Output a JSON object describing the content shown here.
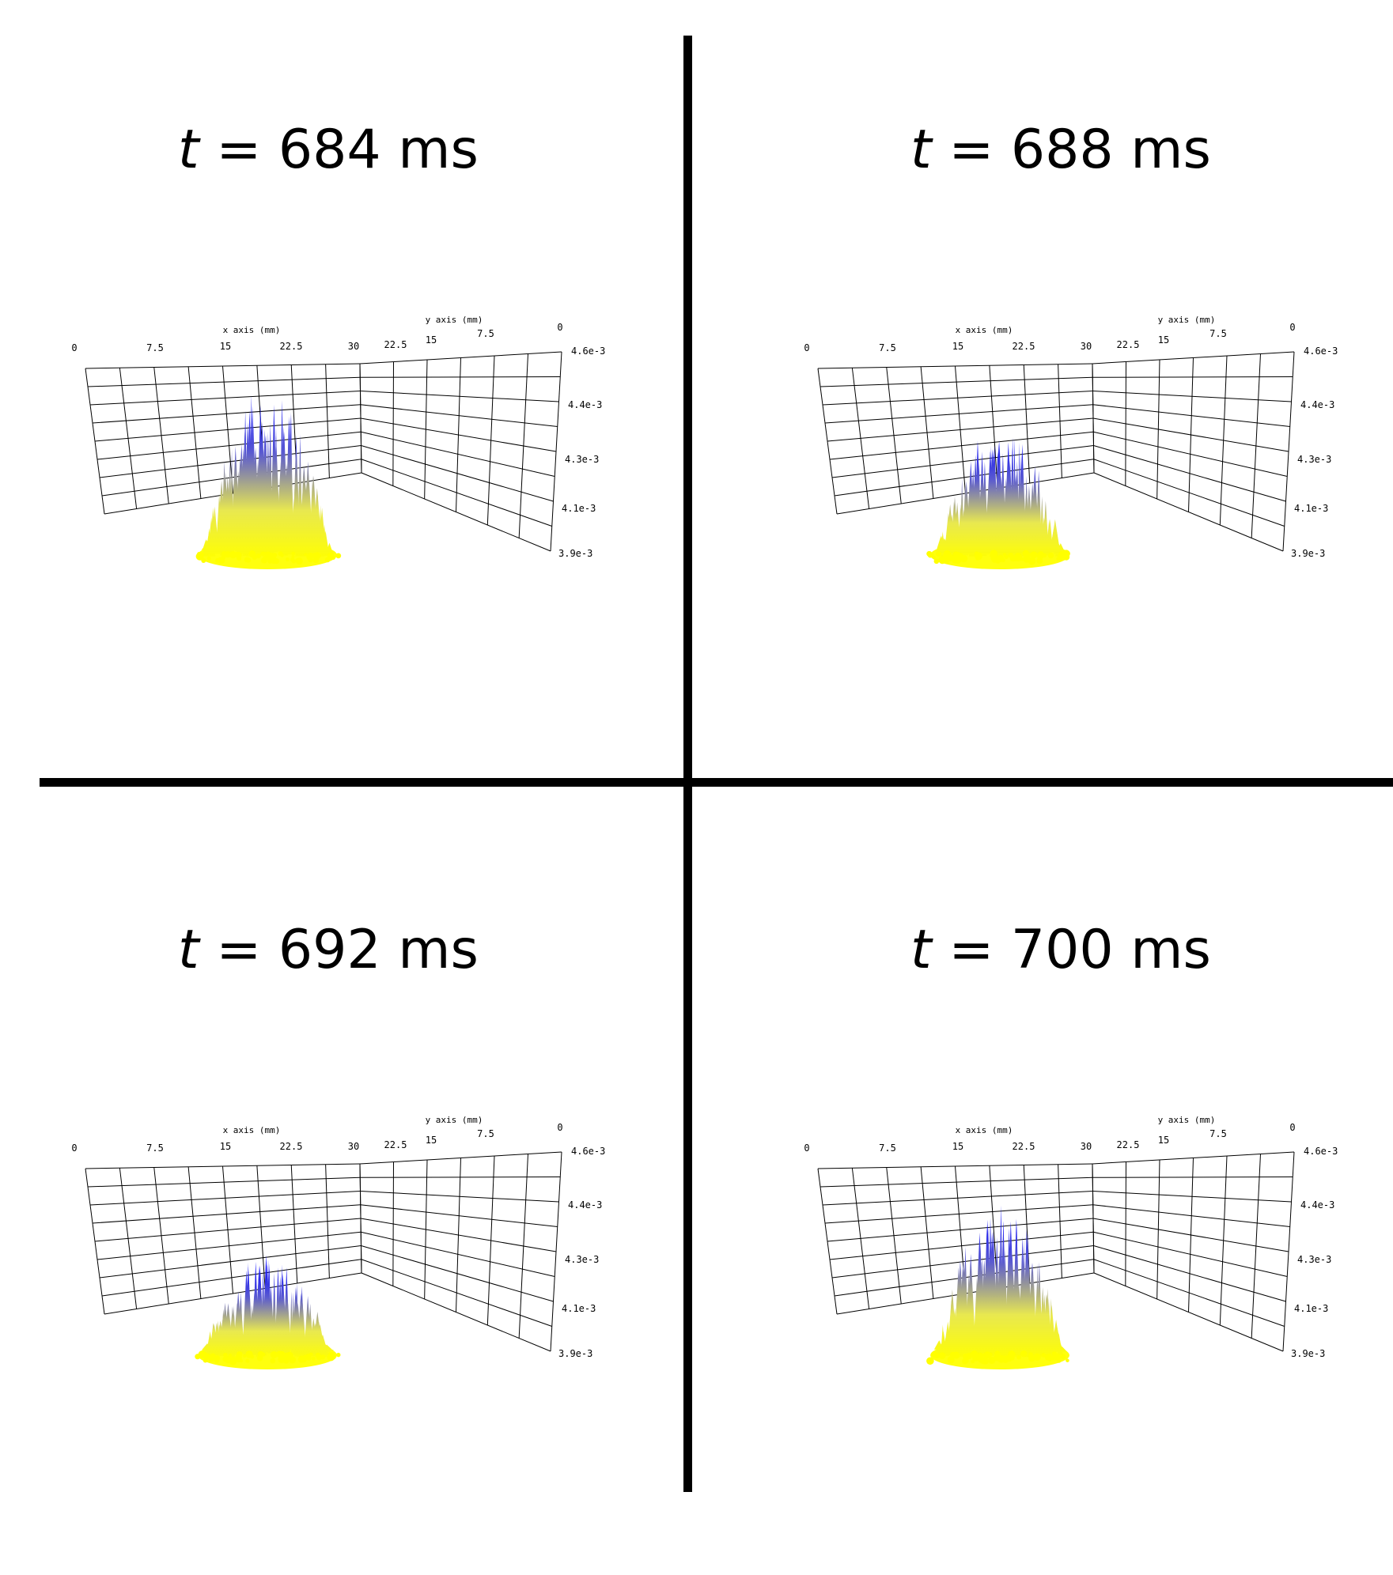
{
  "panels": [
    {
      "time_symbol": "t",
      "time_label": "= 684 ms"
    },
    {
      "time_symbol": "t",
      "time_label": "= 688 ms"
    },
    {
      "time_symbol": "t",
      "time_label": "= 692 ms"
    },
    {
      "time_symbol": "t",
      "time_label": "= 700 ms"
    }
  ],
  "chart_data": [
    {
      "type": "surface3d",
      "title": "t = 684 ms",
      "xlabel": "x axis (mm)",
      "ylabel": "y axis (mm)",
      "x_ticks": [
        "0",
        "7.5",
        "15",
        "22.5",
        "30"
      ],
      "y_ticks": [
        "22.5",
        "15",
        "7.5",
        "0"
      ],
      "z_ticks": [
        "4.6e-3",
        "4.4e-3",
        "4.3e-3",
        "4.1e-3",
        "3.9e-3"
      ],
      "zlim": [
        0.0039,
        0.0046
      ],
      "colormap": [
        "#ffff00",
        "#0000ff"
      ],
      "peak_z": 0.00445,
      "base_z": 0.0039,
      "surface_center_x": 15,
      "surface_half_width_x": 7.5
    },
    {
      "type": "surface3d",
      "title": "t = 688 ms",
      "xlabel": "x axis (mm)",
      "ylabel": "y axis (mm)",
      "x_ticks": [
        "0",
        "7.5",
        "15",
        "22.5",
        "30"
      ],
      "y_ticks": [
        "22.5",
        "15",
        "7.5",
        "0"
      ],
      "z_ticks": [
        "4.6e-3",
        "4.4e-3",
        "4.3e-3",
        "4.1e-3",
        "3.9e-3"
      ],
      "zlim": [
        0.0039,
        0.0046
      ],
      "colormap": [
        "#ffff00",
        "#0000ff"
      ],
      "peak_z": 0.0043,
      "base_z": 0.0039,
      "surface_center_x": 15,
      "surface_half_width_x": 7.5
    },
    {
      "type": "surface3d",
      "title": "t = 692 ms",
      "xlabel": "x axis (mm)",
      "ylabel": "y axis (mm)",
      "x_ticks": [
        "0",
        "7.5",
        "15",
        "22.5",
        "30"
      ],
      "y_ticks": [
        "22.5",
        "15",
        "7.5",
        "0"
      ],
      "z_ticks": [
        "4.6e-3",
        "4.4e-3",
        "4.3e-3",
        "4.1e-3",
        "3.9e-3"
      ],
      "zlim": [
        0.0039,
        0.0046
      ],
      "colormap": [
        "#ffff00",
        "#0000ff"
      ],
      "peak_z": 0.0042,
      "base_z": 0.0039,
      "surface_center_x": 15,
      "surface_half_width_x": 7.5
    },
    {
      "type": "surface3d",
      "title": "t = 700 ms",
      "xlabel": "x axis (mm)",
      "ylabel": "y axis (mm)",
      "x_ticks": [
        "0",
        "7.5",
        "15",
        "22.5",
        "30"
      ],
      "y_ticks": [
        "22.5",
        "15",
        "7.5",
        "0"
      ],
      "z_ticks": [
        "4.6e-3",
        "4.4e-3",
        "4.3e-3",
        "4.1e-3",
        "3.9e-3"
      ],
      "zlim": [
        0.0039,
        0.0046
      ],
      "colormap": [
        "#ffff00",
        "#0000ff"
      ],
      "peak_z": 0.0044,
      "base_z": 0.0039,
      "surface_center_x": 15,
      "surface_half_width_x": 7.5
    }
  ]
}
